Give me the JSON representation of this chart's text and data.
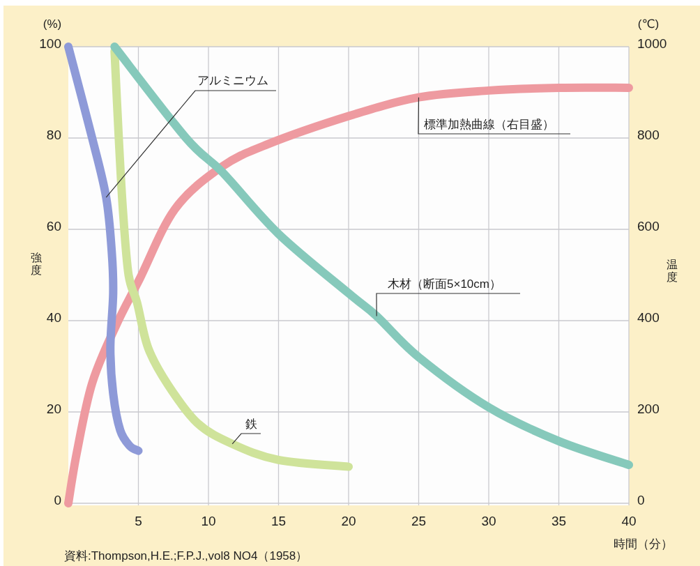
{
  "chart_data": {
    "type": "line",
    "xlabel": "時間（分）",
    "ylabel": "強度",
    "y2label": "温度",
    "annotations": [
      "(%)",
      "(℃)",
      "資料:Thompson,H.E.;F.P.J.,vol8 NO4（1958）"
    ],
    "xlim": [
      0,
      40
    ],
    "xticks": [
      5,
      10,
      15,
      20,
      25,
      30,
      35,
      40
    ],
    "ylim": [
      0,
      100
    ],
    "yticks": [
      0,
      20,
      40,
      60,
      80,
      100
    ],
    "y2lim": [
      0,
      1000
    ],
    "y2ticks": [
      0,
      200,
      400,
      600,
      800,
      1000
    ],
    "grid": true,
    "legend": false,
    "series": [
      {
        "name": "アルミニウム",
        "color": "#8e9ad8",
        "x": [
          0,
          1.7,
          2.7,
          3.1,
          3.2,
          3.0,
          3.2,
          3.7,
          4.4,
          5
        ],
        "values": [
          100,
          80,
          67,
          55,
          46,
          34,
          24,
          16,
          12.5,
          11.5
        ]
      },
      {
        "name": "鉄",
        "color": "#cfe39a",
        "x": [
          3.3,
          3.6,
          3.9,
          4.3,
          4.9,
          5.7,
          7.1,
          9.2,
          11.7,
          15,
          20
        ],
        "values": [
          99,
          80,
          64,
          50,
          44,
          34,
          26,
          17.6,
          13,
          9.5,
          8
        ]
      },
      {
        "name": "木材（断面5×10cm）",
        "color": "#86c9bb",
        "x": [
          3.3,
          8.4,
          11,
          15,
          20,
          22,
          25,
          30,
          35,
          40
        ],
        "values": [
          100,
          80,
          72.5,
          59,
          46,
          41,
          32,
          21,
          13.6,
          8.4
        ]
      },
      {
        "name": "標準加熱曲線（右目盛）",
        "color": "#ee9aa0",
        "axis": "y2",
        "x": [
          0,
          0.6,
          1.7,
          3.4,
          5.1,
          7.6,
          10.9,
          14.2,
          20,
          25,
          30,
          35,
          40
        ],
        "values": [
          0,
          110,
          263,
          389,
          492,
          644,
          736,
          786,
          848,
          889,
          904,
          910,
          910
        ]
      }
    ]
  }
}
